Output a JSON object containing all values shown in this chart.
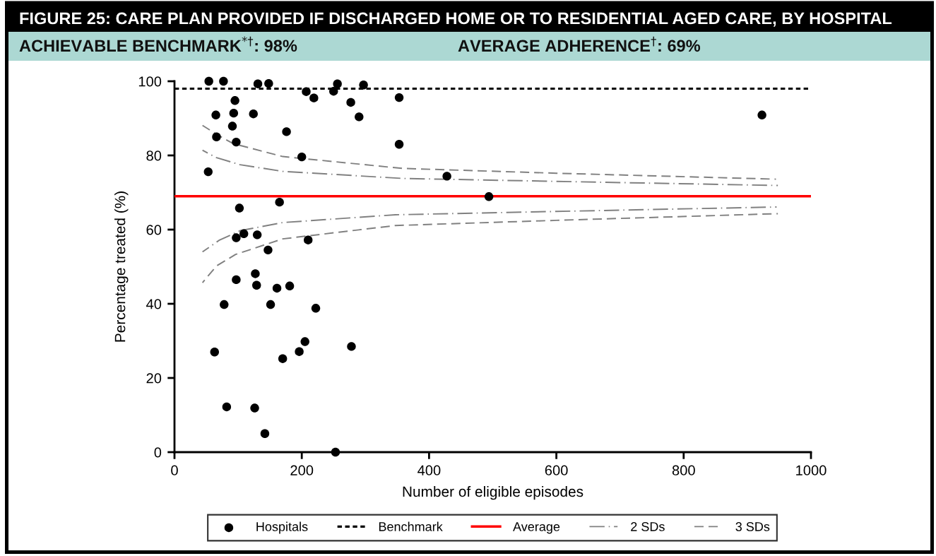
{
  "chart_data": {
    "type": "scatter",
    "title": "FIGURE 25: CARE PLAN PROVIDED IF DISCHARGED HOME OR TO RESIDENTIAL AGED CARE, BY HOSPITAL",
    "subtitle": "ACHIEVABLE BENCHMARK$^{*†}$: 98%",
    "annotations": [
      "AVERAGE ADHERENCE$^{†}$: 69%"
    ],
    "xlabel": "Number of eligible episodes",
    "ylabel": "Percentage treated (%)",
    "xlim": [
      0,
      1000
    ],
    "xticks": [
      0,
      200,
      400,
      600,
      800,
      1000
    ],
    "ylim": [
      0,
      100
    ],
    "yticks": [
      0,
      20,
      40,
      60,
      80,
      100
    ],
    "grid": false,
    "legend": "bottom",
    "series": [
      {
        "name": "Hospitals",
        "color": "#000000",
        "marker": "circle",
        "x": [
          54,
          77,
          131,
          148,
          95,
          65,
          93,
          124,
          91,
          66,
          97,
          53,
          102,
          165,
          97,
          109,
          130,
          147,
          207,
          219,
          256,
          250,
          297,
          277,
          290,
          353,
          176,
          353,
          200,
          210,
          127,
          97,
          129,
          161,
          78,
          151,
          63,
          170,
          82,
          126,
          142,
          181,
          222,
          205,
          196,
          278,
          253,
          428,
          494,
          923
        ],
        "values": [
          100,
          100,
          99.3,
          99.4,
          94.8,
          90.9,
          91.4,
          91.2,
          87.9,
          85.0,
          83.6,
          75.6,
          65.8,
          67.4,
          57.8,
          58.9,
          58.6,
          54.5,
          97.2,
          95.5,
          99.3,
          97.3,
          99.0,
          94.3,
          90.4,
          95.6,
          86.4,
          83.0,
          79.6,
          57.2,
          48.1,
          46.5,
          45.0,
          44.2,
          39.8,
          39.8,
          27.0,
          25.2,
          12.2,
          11.9,
          5.0,
          44.8,
          38.8,
          29.8,
          27.1,
          28.5,
          0,
          74.4,
          68.9,
          90.9
        ]
      },
      {
        "name": "2 SDs",
        "type": "line",
        "color": "#808080",
        "line_style": "dashed",
        "x": [
          44,
          66,
          103,
          170,
          358,
          600,
          948,
          null,
          44,
          70,
          103,
          170,
          347,
          600,
          946
        ],
        "values": [
          81.4,
          79.4,
          77.5,
          75.7,
          73.8,
          73.0,
          71.9,
          null,
          54.0,
          57.1,
          59.7,
          61.9,
          64.0,
          64.9,
          66.1
        ]
      },
      {
        "name": "3 SDs",
        "type": "line",
        "color": "#808080",
        "line_style": "dashed",
        "x": [
          44,
          66,
          92,
          170,
          358,
          600,
          945,
          null,
          44,
          66,
          96,
          170,
          347,
          600,
          948
        ],
        "values": [
          88.1,
          85.7,
          83.2,
          79.7,
          76.5,
          75.2,
          73.6,
          null,
          45.7,
          50.2,
          53.3,
          57.5,
          61.1,
          62.5,
          64.3
        ]
      }
    ],
    "ref_lines": [
      {
        "axis": "y",
        "value": 98,
        "label": "Benchmark",
        "color": "#000000",
        "line_style": "dotted"
      },
      {
        "axis": "y",
        "value": 69,
        "label": "Average",
        "color": "#ff0000",
        "line_style": "solid"
      }
    ]
  }
}
